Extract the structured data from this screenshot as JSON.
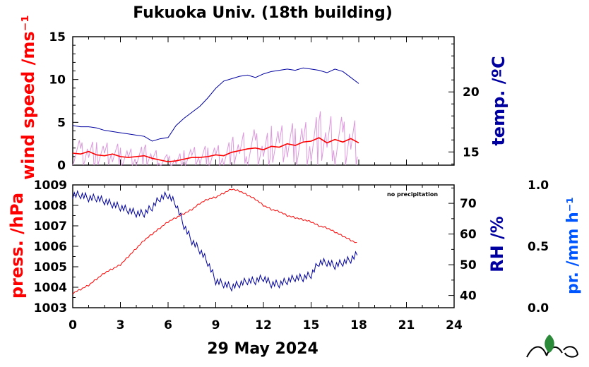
{
  "title": "Fukuoka Univ. (18th building)",
  "xlabel": "29 May 2024",
  "note": "no precipitation",
  "colors": {
    "wind": "#ff0000",
    "wind_light": "#dd99dd",
    "temp": "#0000a0",
    "press": "#ff0000",
    "rh": "#0000a0",
    "precip": "#0055ff"
  },
  "chart_data": [
    {
      "type": "line",
      "panel": "top",
      "x_ticks": [
        "0",
        "3",
        "6",
        "9",
        "12",
        "15",
        "18",
        "21",
        "24"
      ],
      "xlim": [
        0,
        24
      ],
      "xlabel": "29 May 2024",
      "left_axis": {
        "label": "wind speed /ms⁻¹",
        "ylim": [
          0,
          15
        ],
        "ticks": [
          "0",
          "5",
          "10",
          "15"
        ]
      },
      "right_axis": {
        "label": "temp. /ºC",
        "ylim": [
          13.9,
          24.6
        ],
        "ticks": [
          "15",
          "20"
        ]
      },
      "series": [
        {
          "axis": "left",
          "color": "wind",
          "x": [
            0,
            0.5,
            1,
            1.5,
            2,
            2.5,
            3,
            3.5,
            4,
            4.5,
            5,
            5.5,
            6,
            6.5,
            7,
            7.5,
            8,
            8.5,
            9,
            9.5,
            10,
            10.5,
            11,
            11.5,
            12,
            12.5,
            13,
            13.5,
            14,
            14.5,
            15,
            15.5,
            16,
            16.5,
            17,
            17.5,
            18
          ],
          "y": [
            1.4,
            1.3,
            1.6,
            1.2,
            1.1,
            1.3,
            1.0,
            0.9,
            1.0,
            1.1,
            0.8,
            0.6,
            0.4,
            0.5,
            0.7,
            0.9,
            0.9,
            1.0,
            1.2,
            1.1,
            1.5,
            1.7,
            1.9,
            2.0,
            1.8,
            2.2,
            2.1,
            2.5,
            2.3,
            2.7,
            2.8,
            3.2,
            2.6,
            3.0,
            2.7,
            3.1,
            2.6
          ]
        },
        {
          "axis": "right",
          "color": "temp",
          "x": [
            0,
            0.5,
            1,
            1.5,
            2,
            2.5,
            3,
            3.5,
            4,
            4.5,
            5,
            5.5,
            6,
            6.5,
            7,
            7.5,
            8,
            8.5,
            9,
            9.5,
            10,
            10.5,
            11,
            11.5,
            12,
            12.5,
            13,
            13.5,
            14,
            14.5,
            15,
            15.5,
            16,
            16.5,
            17,
            17.5,
            18
          ],
          "y": [
            17.2,
            17.1,
            17.1,
            17.0,
            16.8,
            16.7,
            16.6,
            16.5,
            16.4,
            16.3,
            15.9,
            16.1,
            16.2,
            17.2,
            17.8,
            18.3,
            18.8,
            19.5,
            20.3,
            20.9,
            21.1,
            21.3,
            21.4,
            21.2,
            21.5,
            21.7,
            21.8,
            21.9,
            21.8,
            22.0,
            21.9,
            21.8,
            21.6,
            21.9,
            21.7,
            21.2,
            20.7
          ]
        }
      ]
    },
    {
      "type": "line",
      "panel": "bottom",
      "x_ticks": [
        "0",
        "3",
        "6",
        "9",
        "12",
        "15",
        "18",
        "21",
        "24"
      ],
      "xlim": [
        0,
        24
      ],
      "left_axis": {
        "label": "press. /hPa",
        "ylim": [
          1003,
          1009
        ],
        "ticks": [
          "1003",
          "1004",
          "1005",
          "1006",
          "1007",
          "1008",
          "1009"
        ]
      },
      "right_axis": {
        "label": "RH /%",
        "ylim": [
          36,
          76
        ],
        "ticks": [
          "40",
          "50",
          "60",
          "70"
        ]
      },
      "far_right_axis": {
        "label": "pr. /mm h⁻¹",
        "ylim": [
          0.0,
          1.0
        ],
        "ticks": [
          "0.0",
          "0.5",
          "1.0"
        ]
      },
      "series": [
        {
          "axis": "left",
          "color": "press",
          "x": [
            0,
            0.5,
            1,
            1.5,
            2,
            2.5,
            3,
            3.5,
            4,
            4.5,
            5,
            5.5,
            6,
            6.5,
            7,
            7.5,
            8,
            8.5,
            9,
            9.5,
            10,
            10.5,
            11,
            11.5,
            12,
            12.5,
            13,
            13.5,
            14,
            14.5,
            15,
            15.5,
            16,
            16.5,
            17,
            17.5,
            18
          ],
          "y": [
            1003.7,
            1003.9,
            1004.1,
            1004.4,
            1004.7,
            1004.9,
            1005.1,
            1005.5,
            1005.9,
            1006.3,
            1006.6,
            1006.9,
            1007.2,
            1007.4,
            1007.6,
            1007.8,
            1008.1,
            1008.3,
            1008.4,
            1008.6,
            1008.8,
            1008.7,
            1008.5,
            1008.3,
            1008.0,
            1007.8,
            1007.7,
            1007.5,
            1007.4,
            1007.3,
            1007.2,
            1007.0,
            1006.9,
            1006.7,
            1006.5,
            1006.3,
            1006.1
          ]
        },
        {
          "axis": "right",
          "color": "rh",
          "x": [
            0,
            0.5,
            1,
            1.5,
            2,
            2.5,
            3,
            3.5,
            4,
            4.5,
            5,
            5.5,
            6,
            6.5,
            7,
            7.5,
            8,
            8.5,
            9,
            9.5,
            10,
            10.5,
            11,
            11.5,
            12,
            12.5,
            13,
            13.5,
            14,
            14.5,
            15,
            15.5,
            16,
            16.5,
            17,
            17.5,
            18
          ],
          "y": [
            73,
            73,
            72,
            72,
            71,
            70,
            69,
            68,
            67,
            67,
            69,
            72,
            73,
            70,
            63,
            58,
            55,
            51,
            45,
            44,
            43,
            44,
            45,
            45,
            46,
            44,
            44,
            45,
            46,
            46,
            47,
            51,
            51,
            50,
            51,
            52,
            54
          ]
        },
        {
          "axis": "far_right",
          "color": "precip",
          "x": [],
          "y": []
        }
      ]
    }
  ],
  "logo_alt": "logo"
}
